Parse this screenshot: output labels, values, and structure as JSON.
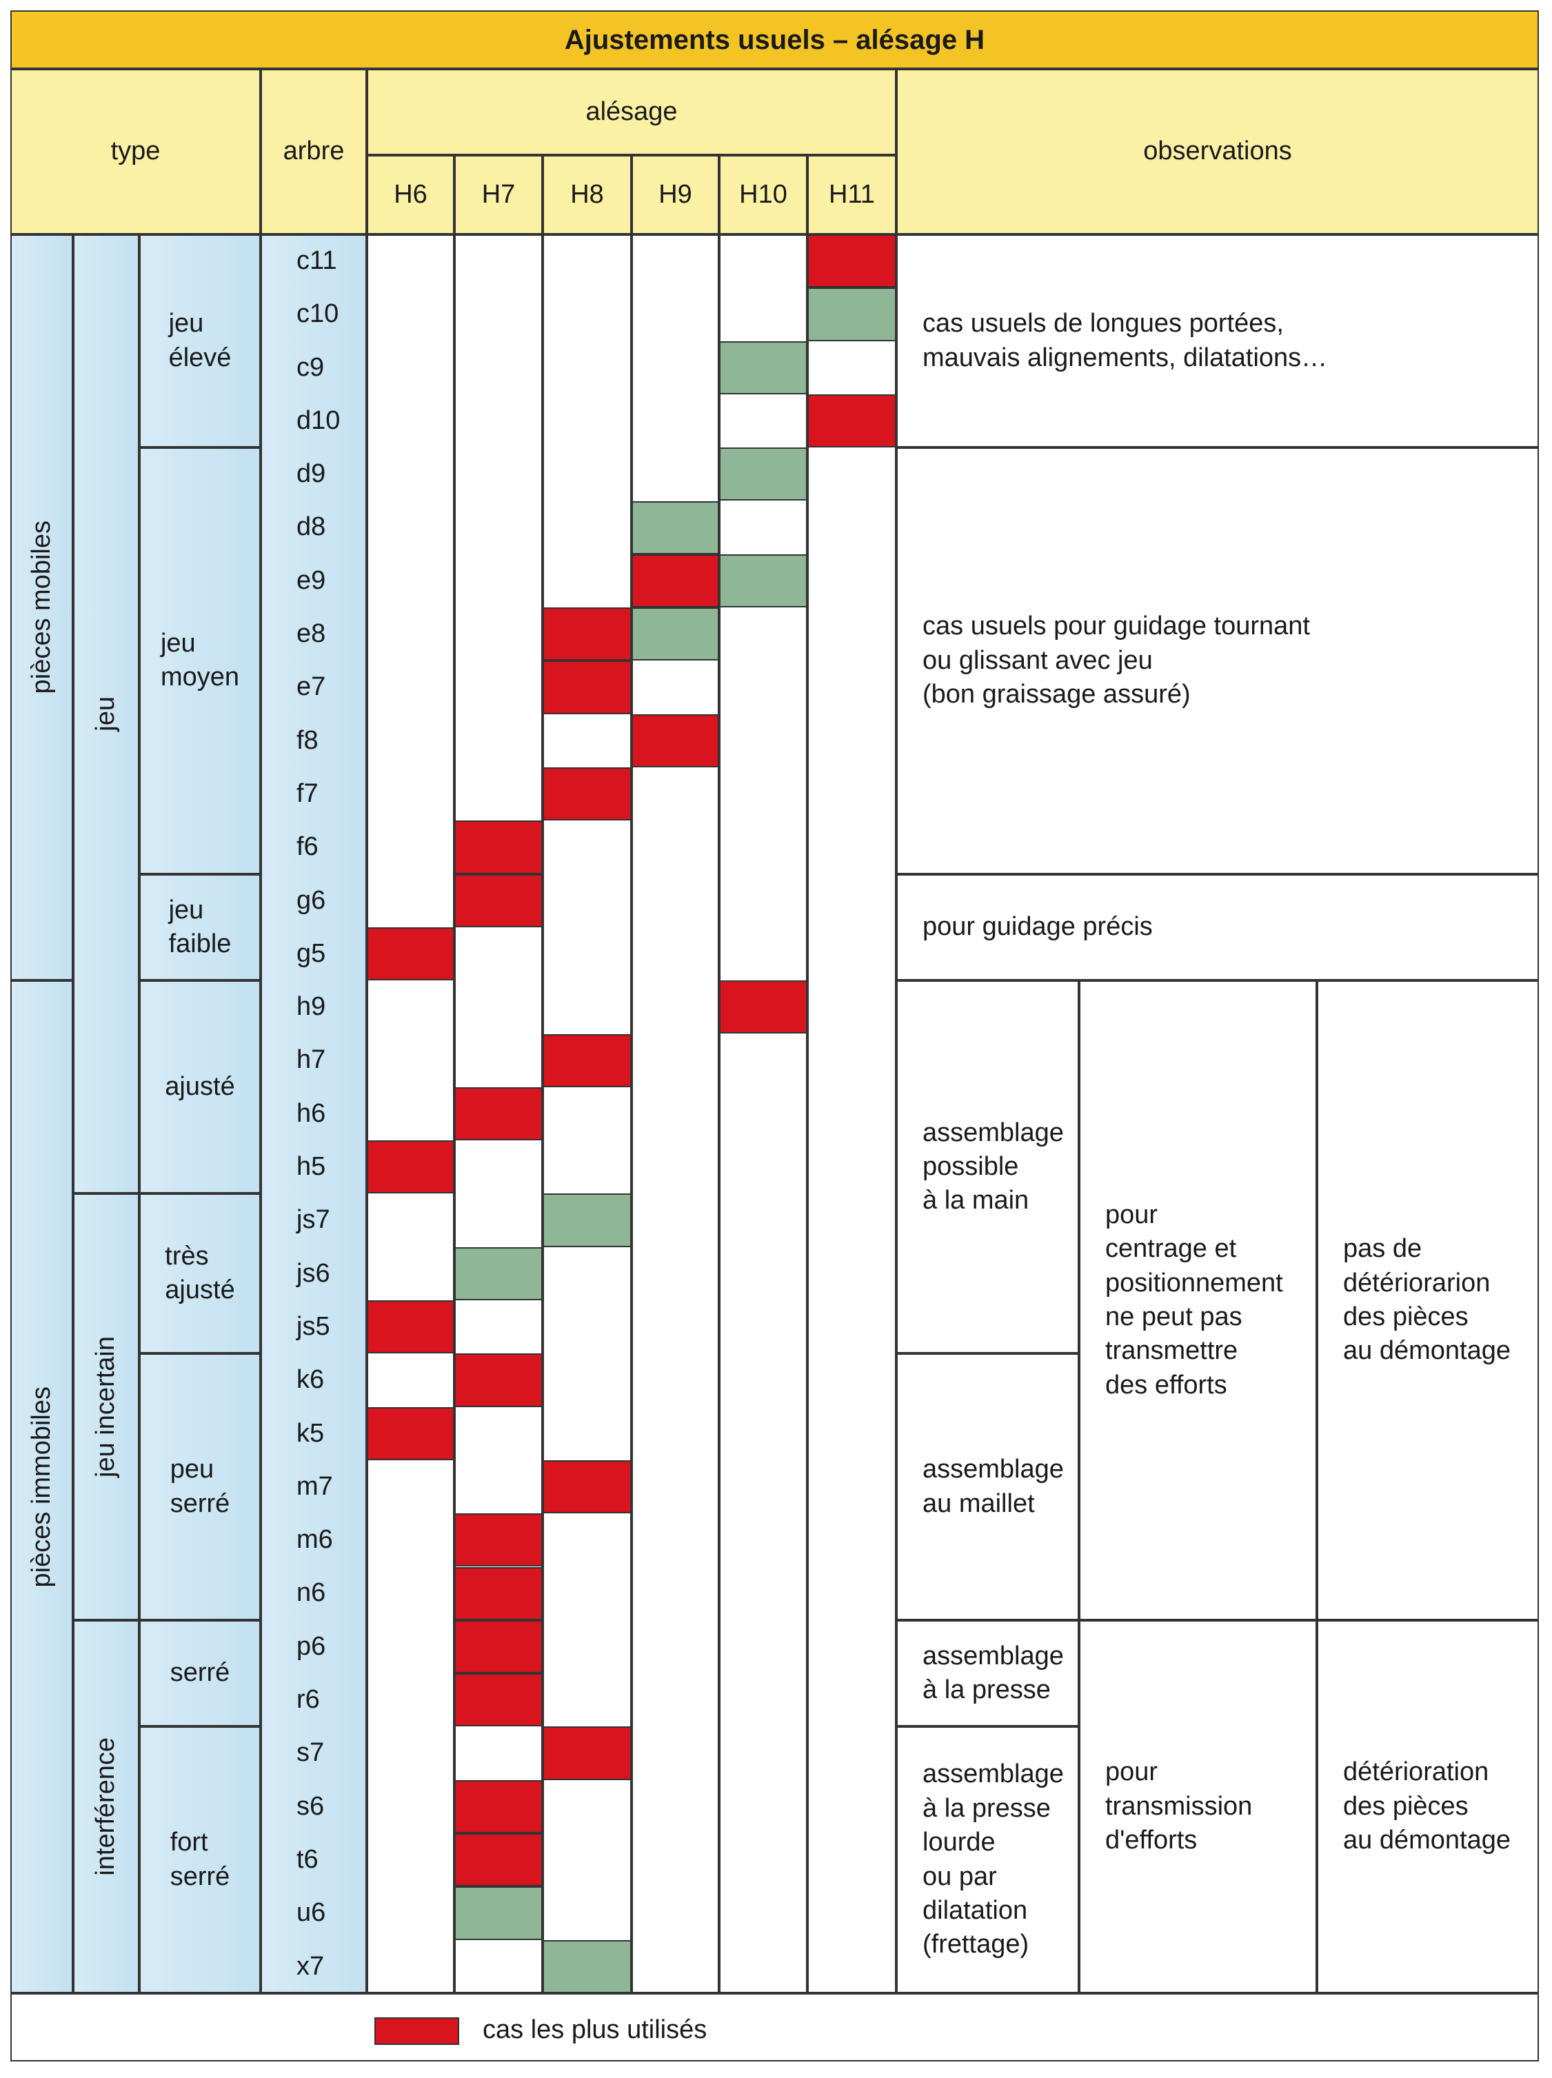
{
  "title": "Ajustements usuels – alésage H",
  "header": {
    "type": "type",
    "arbre": "arbre",
    "alesage": "alésage",
    "columns": [
      "H6",
      "H7",
      "H8",
      "H9",
      "H10",
      "H11"
    ],
    "observations": "observations"
  },
  "colors": {
    "red": "#d8141e",
    "green": "#8fb797"
  },
  "groups": {
    "level1": [
      {
        "label": "pièces mobiles",
        "rows": 14
      },
      {
        "label": "pièces immobiles",
        "rows": 19
      }
    ],
    "level2": [
      {
        "label": "jeu",
        "rows": 18
      },
      {
        "label": "jeu incertain",
        "rows": 8
      },
      {
        "label": "interférence",
        "rows": 7
      }
    ],
    "level3": [
      {
        "lines": [
          "jeu",
          "élevé"
        ],
        "rows": 4
      },
      {
        "lines": [
          "jeu",
          "moyen"
        ],
        "rows": 8
      },
      {
        "lines": [
          "jeu",
          "faible"
        ],
        "rows": 2
      },
      {
        "lines": [
          "ajusté"
        ],
        "rows": 4
      },
      {
        "lines": [
          "très",
          "ajusté"
        ],
        "rows": 3
      },
      {
        "lines": [
          "peu",
          "serré"
        ],
        "rows": 5
      },
      {
        "lines": [
          "serré"
        ],
        "rows": 2
      },
      {
        "lines": [
          "fort",
          "serré"
        ],
        "rows": 5
      }
    ]
  },
  "rows": [
    {
      "arbre": "c11",
      "marks": [
        null,
        null,
        null,
        null,
        null,
        "red"
      ]
    },
    {
      "arbre": "c10",
      "marks": [
        null,
        null,
        null,
        null,
        null,
        "green"
      ]
    },
    {
      "arbre": "c9",
      "marks": [
        null,
        null,
        null,
        null,
        "green",
        null
      ]
    },
    {
      "arbre": "d10",
      "marks": [
        null,
        null,
        null,
        null,
        null,
        "red"
      ]
    },
    {
      "arbre": "d9",
      "marks": [
        null,
        null,
        null,
        null,
        "green",
        null
      ]
    },
    {
      "arbre": "d8",
      "marks": [
        null,
        null,
        null,
        "green",
        null,
        null
      ]
    },
    {
      "arbre": "e9",
      "marks": [
        null,
        null,
        null,
        "red",
        "green",
        null
      ]
    },
    {
      "arbre": "e8",
      "marks": [
        null,
        null,
        "red",
        "green",
        null,
        null
      ]
    },
    {
      "arbre": "e7",
      "marks": [
        null,
        null,
        "red",
        null,
        null,
        null
      ]
    },
    {
      "arbre": "f8",
      "marks": [
        null,
        null,
        null,
        "red",
        null,
        null
      ]
    },
    {
      "arbre": "f7",
      "marks": [
        null,
        null,
        "red",
        null,
        null,
        null
      ]
    },
    {
      "arbre": "f6",
      "marks": [
        null,
        "red",
        null,
        null,
        null,
        null
      ]
    },
    {
      "arbre": "g6",
      "marks": [
        null,
        "red",
        null,
        null,
        null,
        null
      ]
    },
    {
      "arbre": "g5",
      "marks": [
        "red",
        null,
        null,
        null,
        null,
        null
      ]
    },
    {
      "arbre": "h9",
      "marks": [
        null,
        null,
        null,
        null,
        "red",
        null
      ]
    },
    {
      "arbre": "h7",
      "marks": [
        null,
        null,
        "red",
        null,
        null,
        null
      ]
    },
    {
      "arbre": "h6",
      "marks": [
        null,
        "red",
        null,
        null,
        null,
        null
      ]
    },
    {
      "arbre": "h5",
      "marks": [
        "red",
        null,
        null,
        null,
        null,
        null
      ]
    },
    {
      "arbre": "js7",
      "marks": [
        null,
        null,
        "green",
        null,
        null,
        null
      ]
    },
    {
      "arbre": "js6",
      "marks": [
        null,
        "green",
        null,
        null,
        null,
        null
      ]
    },
    {
      "arbre": "js5",
      "marks": [
        "red",
        null,
        null,
        null,
        null,
        null
      ]
    },
    {
      "arbre": "k6",
      "marks": [
        null,
        "red",
        null,
        null,
        null,
        null
      ]
    },
    {
      "arbre": "k5",
      "marks": [
        "red",
        null,
        null,
        null,
        null,
        null
      ]
    },
    {
      "arbre": "m7",
      "marks": [
        null,
        null,
        "red",
        null,
        null,
        null
      ]
    },
    {
      "arbre": "m6",
      "marks": [
        null,
        "red",
        null,
        null,
        null,
        null
      ]
    },
    {
      "arbre": "n6",
      "marks": [
        null,
        "red",
        null,
        null,
        null,
        null
      ]
    },
    {
      "arbre": "p6",
      "marks": [
        null,
        "red",
        null,
        null,
        null,
        null
      ]
    },
    {
      "arbre": "r6",
      "marks": [
        null,
        "red",
        null,
        null,
        null,
        null
      ]
    },
    {
      "arbre": "s7",
      "marks": [
        null,
        null,
        "red",
        null,
        null,
        null
      ]
    },
    {
      "arbre": "s6",
      "marks": [
        null,
        "red",
        null,
        null,
        null,
        null
      ]
    },
    {
      "arbre": "t6",
      "marks": [
        null,
        "red",
        null,
        null,
        null,
        null
      ]
    },
    {
      "arbre": "u6",
      "marks": [
        null,
        "green",
        null,
        null,
        null,
        null
      ]
    },
    {
      "arbre": "x7",
      "marks": [
        null,
        null,
        "green",
        null,
        null,
        null
      ]
    }
  ],
  "observations": {
    "full": [
      {
        "rows": 4,
        "lines": [
          "cas usuels de longues portées,",
          "mauvais alignements, dilatations…"
        ]
      },
      {
        "rows": 8,
        "lines": [
          "cas usuels pour guidage tournant",
          "ou glissant avec jeu",
          "(bon graissage assuré)"
        ]
      },
      {
        "rows": 2,
        "lines": [
          "pour guidage précis"
        ]
      }
    ],
    "col1": [
      {
        "rows": 7,
        "lines": [
          "assemblage",
          "possible",
          "à la main"
        ]
      },
      {
        "rows": 5,
        "lines": [
          "assemblage",
          "au maillet"
        ]
      },
      {
        "rows": 2,
        "lines": [
          "assemblage",
          "à la presse"
        ]
      },
      {
        "rows": 5,
        "lines": [
          "assemblage",
          "à la presse",
          "lourde",
          "ou par",
          "dilatation",
          "(frettage)"
        ]
      }
    ],
    "col2": [
      {
        "rows": 12,
        "lines": [
          "pour",
          "centrage et",
          "positionnement",
          "ne peut pas",
          "transmettre",
          "des efforts"
        ]
      },
      {
        "rows": 7,
        "lines": [
          "pour",
          "transmission",
          "d'efforts"
        ]
      }
    ],
    "col3": [
      {
        "rows": 12,
        "lines": [
          "pas de",
          "détériorarion",
          "des pièces",
          "au démontage"
        ]
      },
      {
        "rows": 7,
        "lines": [
          "détérioration",
          "des pièces",
          "au démontage"
        ]
      }
    ]
  },
  "legend": {
    "color": "red",
    "label": "cas les plus utilisés"
  }
}
